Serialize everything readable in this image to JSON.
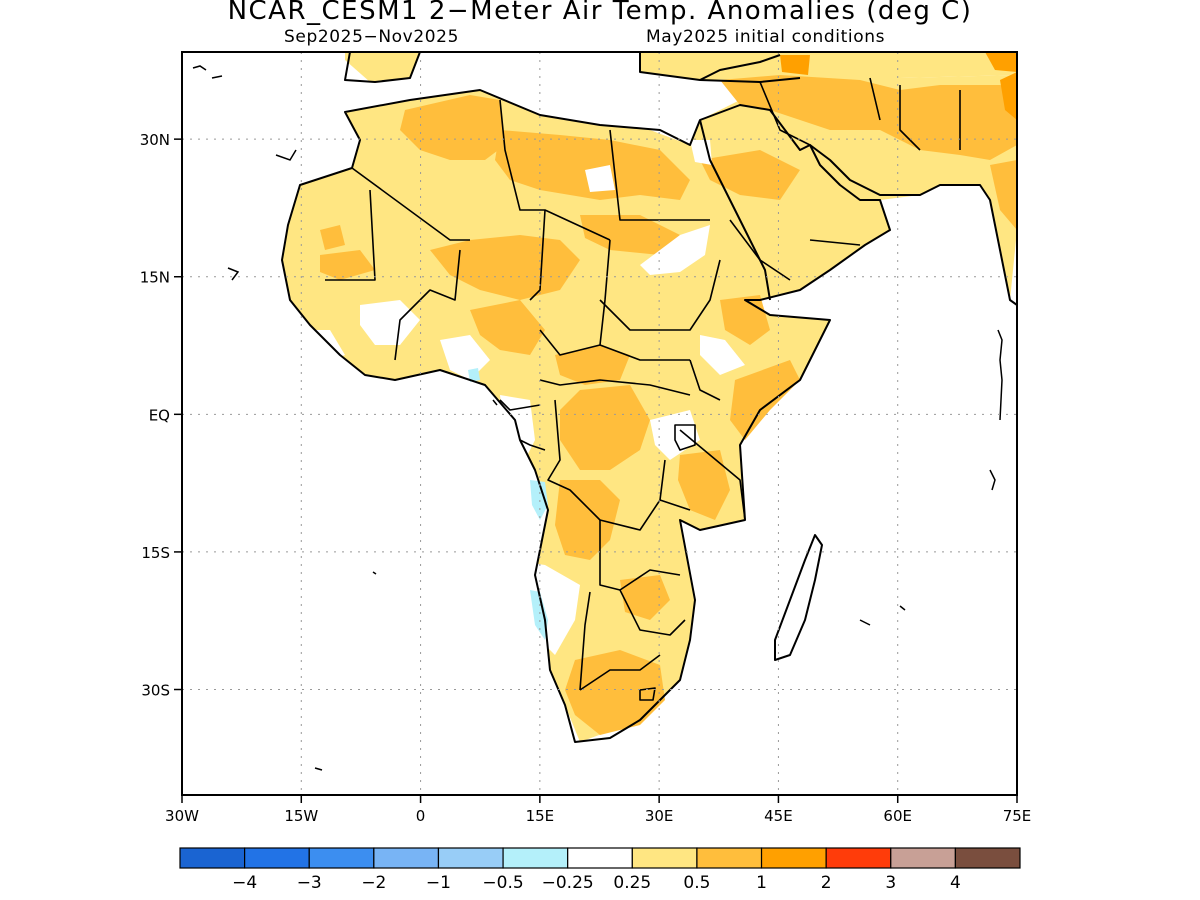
{
  "title": "NCAR_CESM1 2−Meter Air Temp. Anomalies (deg C)",
  "subtitle_left": "Sep2025−Nov2025",
  "subtitle_right": "May2025 initial conditions",
  "map": {
    "lon_range": [
      -30,
      75
    ],
    "lat_range": [
      -41.5,
      39.5
    ],
    "x_ticks": [
      "30W",
      "15W",
      "0",
      "15E",
      "30E",
      "45E",
      "60E",
      "75E"
    ],
    "x_tick_lons": [
      -30,
      -15,
      0,
      15,
      30,
      45,
      60,
      75
    ],
    "y_ticks": [
      "30N",
      "15N",
      "EQ",
      "15S",
      "30S"
    ],
    "y_tick_lats": [
      30,
      15,
      0,
      -15,
      -30
    ],
    "grid": "dotted"
  },
  "colorbar": {
    "colors": [
      "#1a64d2",
      "#2273e6",
      "#3c8ef0",
      "#78b4f5",
      "#98cdf7",
      "#b4f0fa",
      "#ffffff",
      "#ffe682",
      "#ffbe3c",
      "#ffa000",
      "#ff3c0a",
      "#c8a096",
      "#7a4e3e"
    ],
    "labels": [
      "−4",
      "−3",
      "−2",
      "−1",
      "−0.5",
      "−0.25",
      "0.25",
      "0.5",
      "1",
      "2",
      "3",
      "4"
    ]
  },
  "legend_colors": {
    "land_outline": "#000000",
    "weak_warm": "#ffe682",
    "moderate_warm": "#ffbe3c",
    "strong_warm": "#ffa000",
    "weak_cool": "#b4f0fa"
  }
}
